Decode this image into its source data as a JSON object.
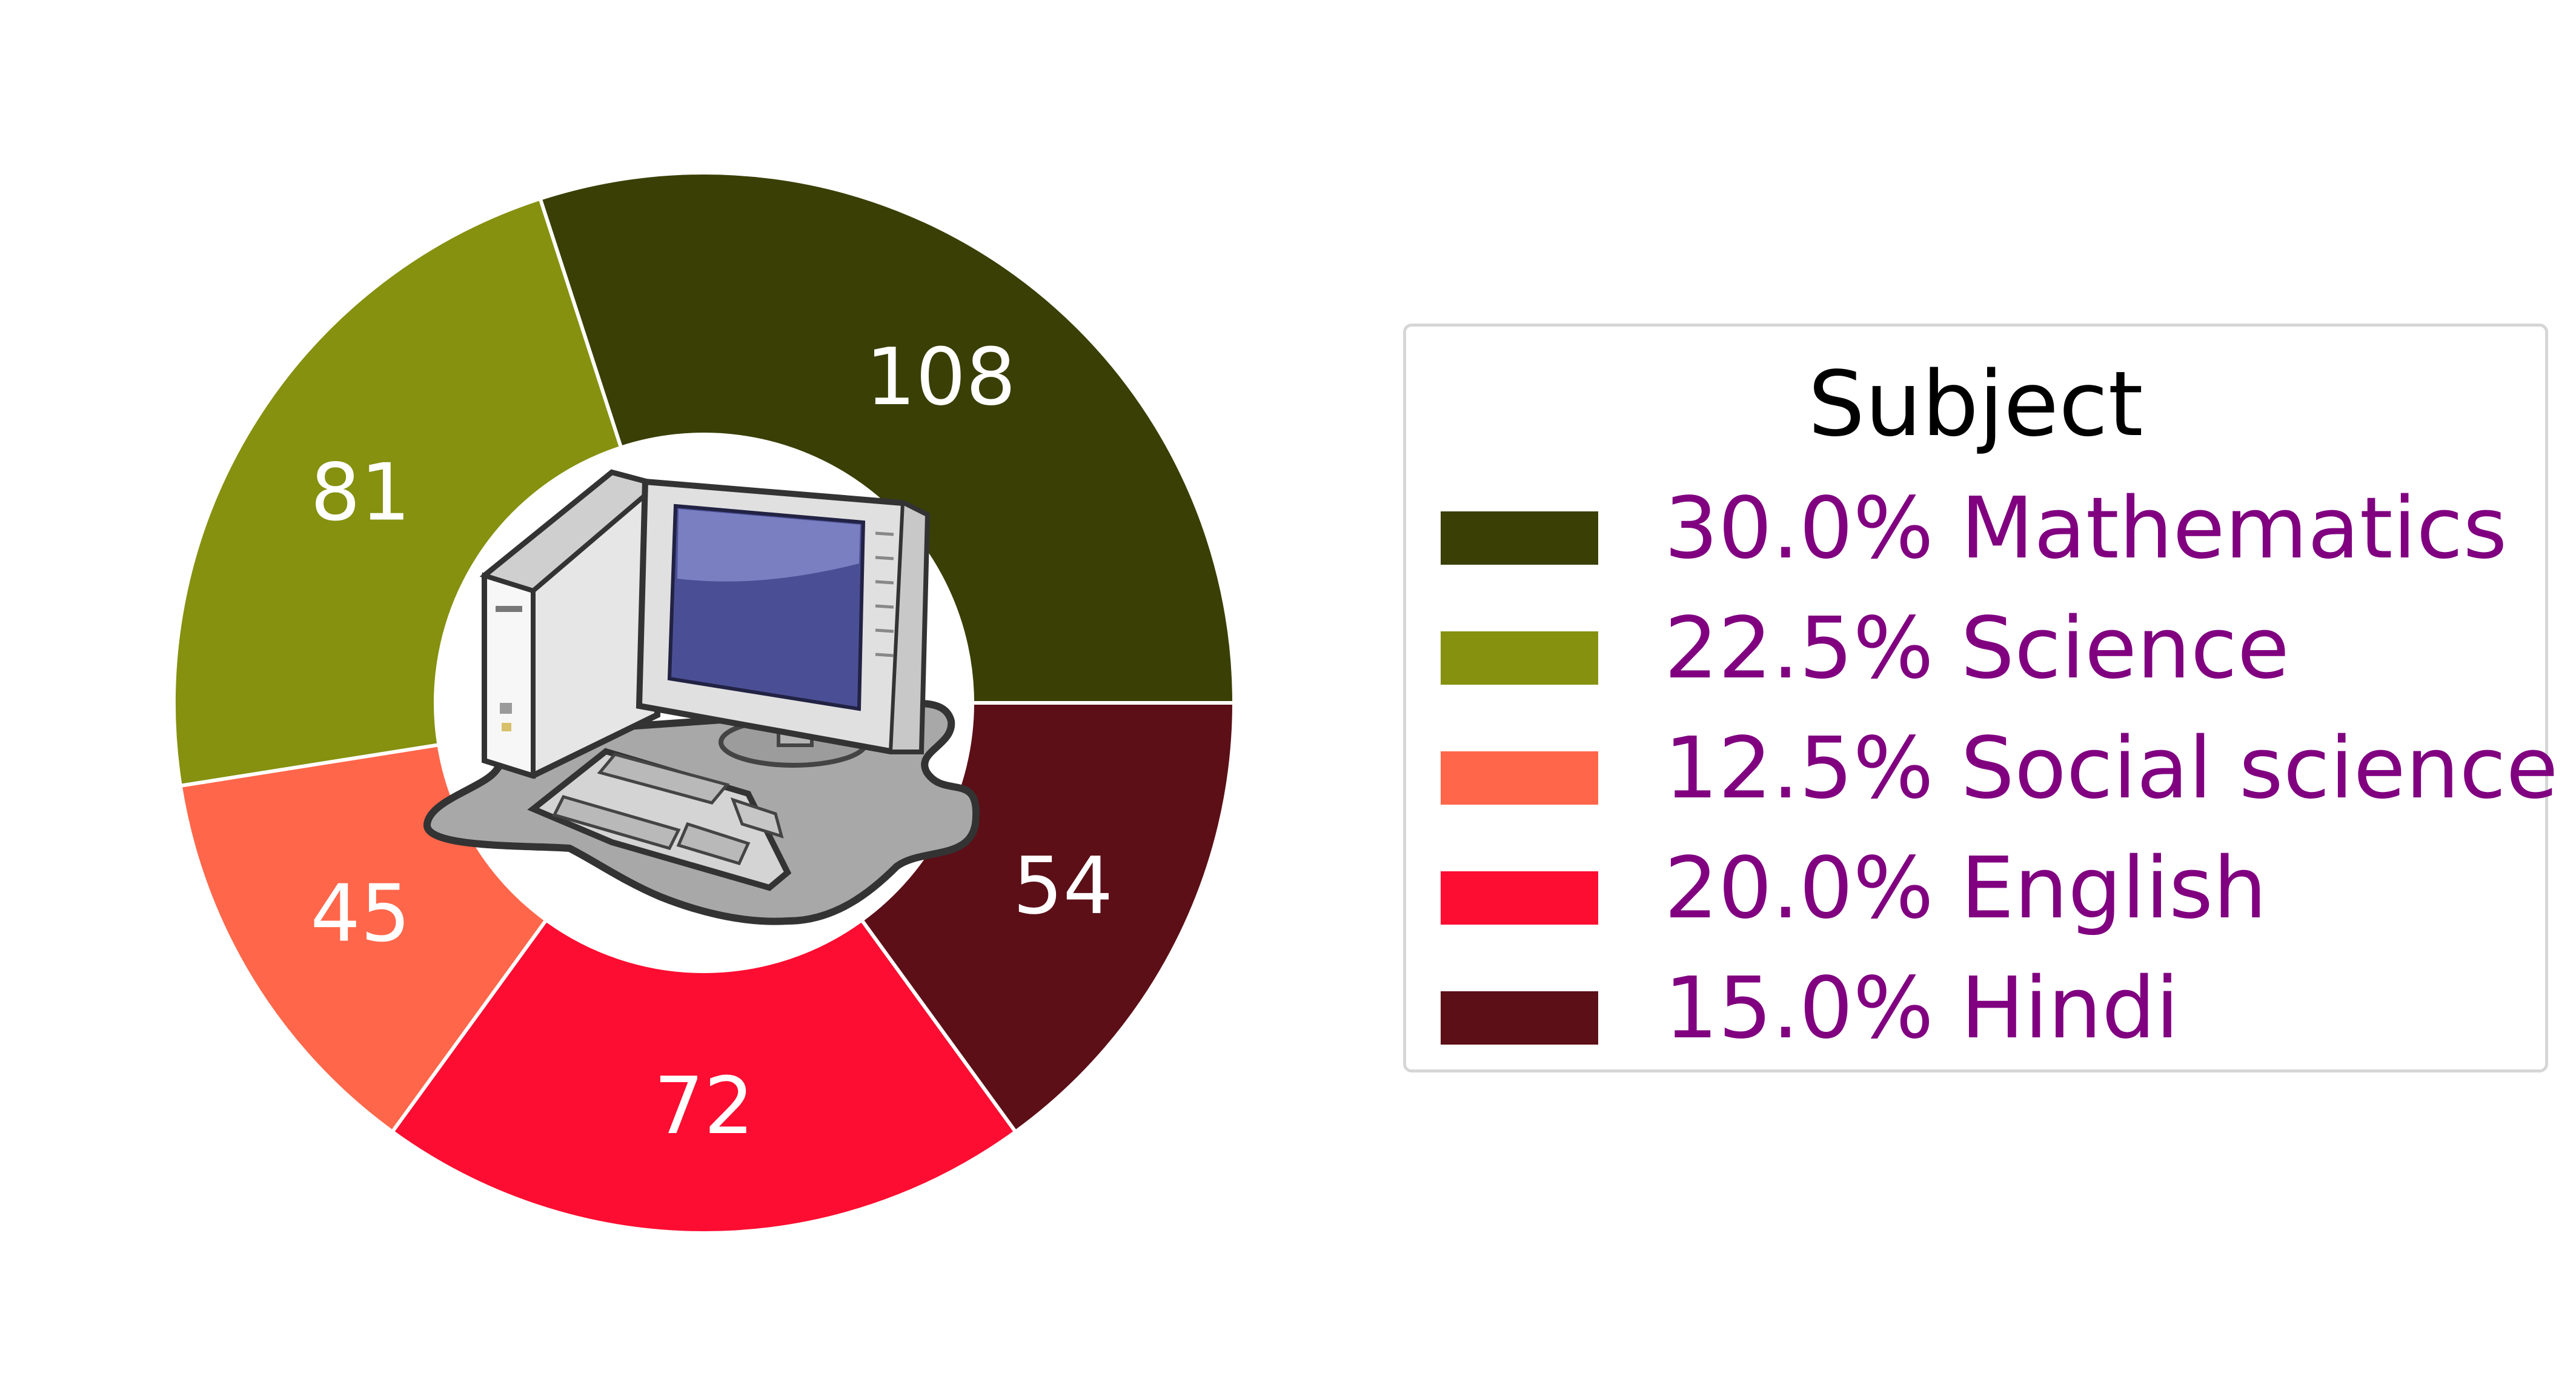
{
  "chart_data": {
    "type": "pie",
    "style": "donut",
    "start_angle_deg": 0,
    "direction": "counterclockwise",
    "center_image": "desktop-computer-icon",
    "legend": {
      "title": "Subject",
      "placement": "right",
      "label_color": "#800080"
    },
    "slices": [
      {
        "label": "Mathematics",
        "value": 108,
        "percent_label": "30.0%",
        "color": "#3a3f05"
      },
      {
        "label": "Science",
        "value": 81,
        "percent_label": "22.5%",
        "color": "#85910f"
      },
      {
        "label": "Social science",
        "value": 45,
        "percent_label": "12.5%",
        "color": "#ff664a"
      },
      {
        "label": "English",
        "value": 72,
        "percent_label": "20.0%",
        "color": "#fc0d31"
      },
      {
        "label": "Hindi",
        "value": 54,
        "percent_label": "15.0%",
        "color": "#5c0f17"
      }
    ]
  }
}
